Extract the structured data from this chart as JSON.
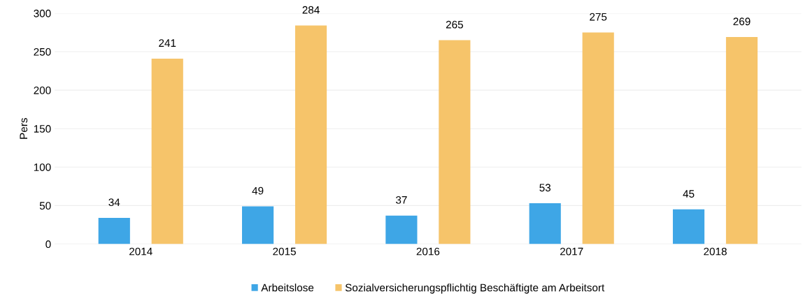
{
  "chart_data": {
    "type": "bar",
    "ylabel": "Pers",
    "categories": [
      "2014",
      "2015",
      "2016",
      "2017",
      "2018"
    ],
    "series": [
      {
        "name": "Arbeitslose",
        "color": "#3ea6e6",
        "values": [
          34,
          49,
          37,
          53,
          45
        ]
      },
      {
        "name": "Sozialversicherungspflichtig Beschäftigte am Arbeitsort",
        "color": "#f6c46a",
        "values": [
          241,
          284,
          265,
          275,
          269
        ]
      }
    ],
    "ylim": [
      0,
      300
    ],
    "yticks": [
      0,
      50,
      100,
      150,
      200,
      250,
      300
    ],
    "grid": "y",
    "legend": "bottom",
    "data_labels": true
  }
}
